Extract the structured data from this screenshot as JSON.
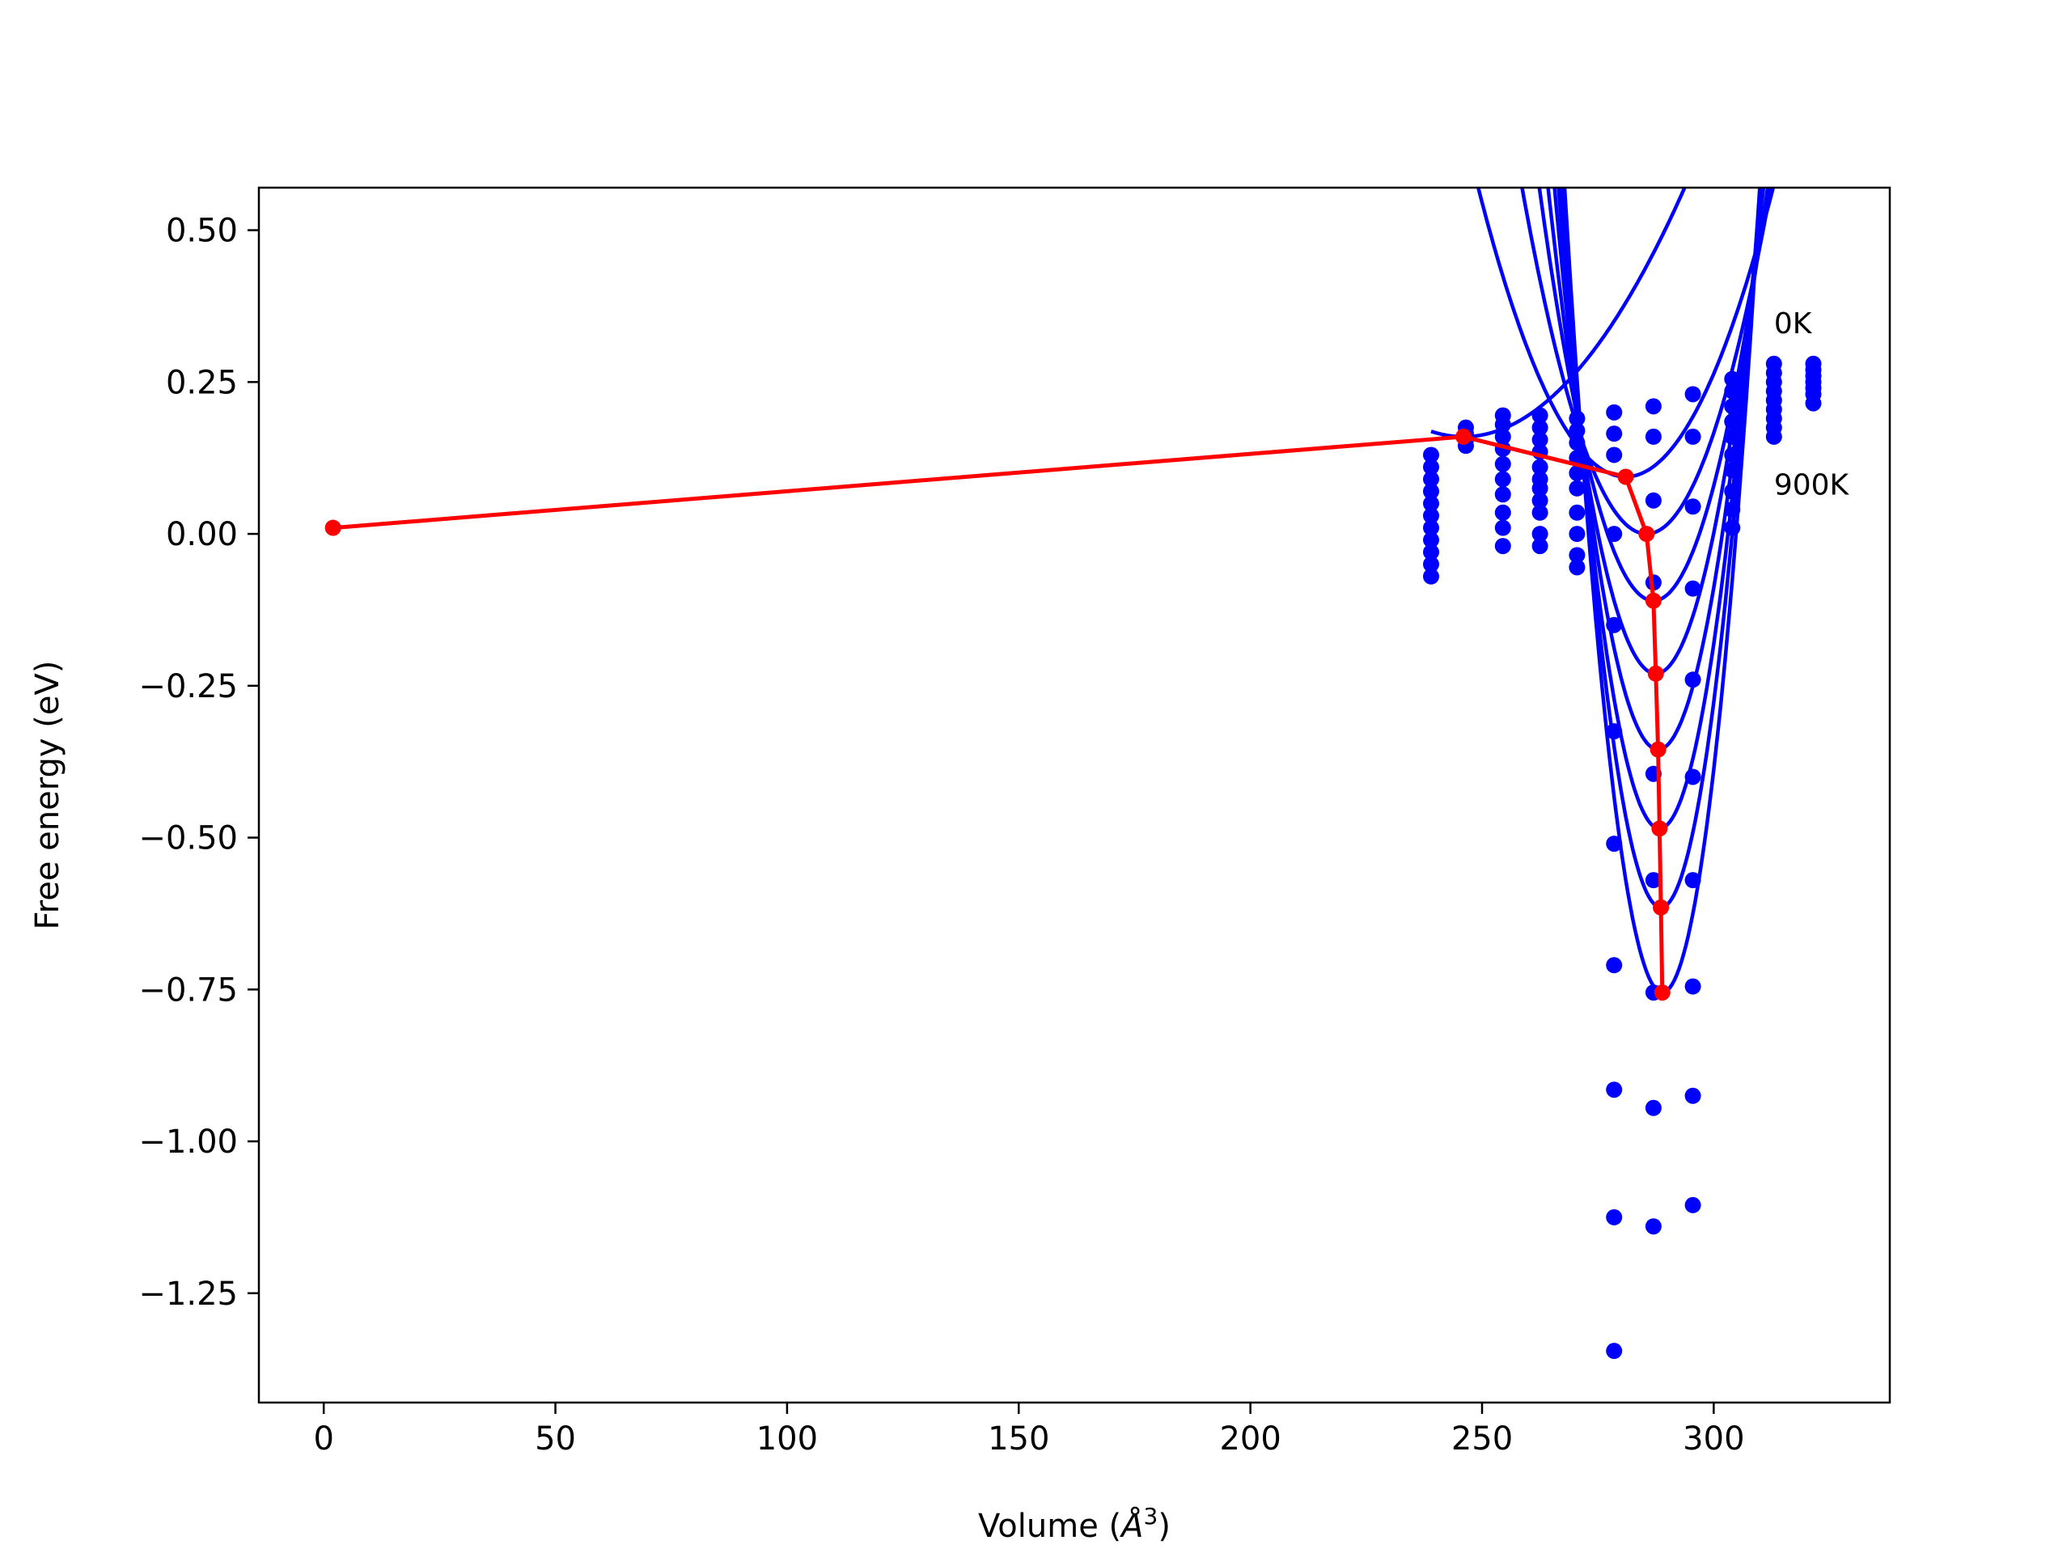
{
  "chart_data": {
    "type": "line",
    "title": "",
    "xlabel": "Volume (",
    "xlabel_symbol": "Å",
    "xlabel_sup": "3",
    "xlabel_close": ")",
    "ylabel": "Free energy (eV)",
    "xlim": [
      -14,
      338
    ],
    "ylim": [
      -1.43,
      0.57
    ],
    "xticks": [
      0,
      50,
      100,
      150,
      200,
      250,
      300
    ],
    "xtick_labels": [
      "0",
      "50",
      "100",
      "150",
      "200",
      "250",
      "300"
    ],
    "yticks": [
      0.5,
      0.25,
      0.0,
      -0.25,
      -0.5,
      -0.75,
      -1.0,
      -1.25
    ],
    "ytick_labels": [
      "0.50",
      "0.25",
      "0.00",
      "−0.25",
      "−0.50",
      "−0.75",
      "−1.00",
      "−1.25"
    ],
    "grid": false,
    "annotations": [
      {
        "text": "0K",
        "x": 313,
        "y": 0.33
      },
      {
        "text": "900K",
        "x": 313,
        "y": 0.065
      }
    ],
    "colors": {
      "fits": "#0000ff",
      "minimum_path": "#ff0000",
      "axes": "#000000"
    },
    "fit_curves": [
      {
        "v0": 246,
        "e0": 0.16,
        "a": 0.00018
      },
      {
        "v0": 281,
        "e0": 0.094,
        "a": 0.00047
      },
      {
        "v0": 285.5,
        "e0": 0.0,
        "a": 0.00079
      },
      {
        "v0": 287,
        "e0": -0.11,
        "a": 0.00112
      },
      {
        "v0": 287.5,
        "e0": -0.23,
        "a": 0.00148
      },
      {
        "v0": 288,
        "e0": -0.355,
        "a": 0.00185
      },
      {
        "v0": 288.3,
        "e0": -0.485,
        "a": 0.00222
      },
      {
        "v0": 288.6,
        "e0": -0.615,
        "a": 0.0026
      },
      {
        "v0": 288.9,
        "e0": -0.755,
        "a": 0.00298
      }
    ],
    "fit_range": [
      239,
      322
    ],
    "scatter_points": [
      {
        "x": 239,
        "y": 0.13
      },
      {
        "x": 239,
        "y": 0.11
      },
      {
        "x": 239,
        "y": 0.09
      },
      {
        "x": 239,
        "y": 0.07
      },
      {
        "x": 239,
        "y": 0.05
      },
      {
        "x": 239,
        "y": 0.03
      },
      {
        "x": 239,
        "y": 0.01
      },
      {
        "x": 239,
        "y": -0.01
      },
      {
        "x": 239,
        "y": -0.03
      },
      {
        "x": 239,
        "y": -0.05
      },
      {
        "x": 239,
        "y": -0.07
      },
      {
        "x": 246.5,
        "y": 0.175
      },
      {
        "x": 246.5,
        "y": 0.165
      },
      {
        "x": 246.5,
        "y": 0.155
      },
      {
        "x": 246.5,
        "y": 0.145
      },
      {
        "x": 254.5,
        "y": 0.195
      },
      {
        "x": 254.5,
        "y": 0.18
      },
      {
        "x": 254.5,
        "y": 0.16
      },
      {
        "x": 254.5,
        "y": 0.14
      },
      {
        "x": 254.5,
        "y": 0.115
      },
      {
        "x": 254.5,
        "y": 0.09
      },
      {
        "x": 254.5,
        "y": 0.065
      },
      {
        "x": 254.5,
        "y": 0.035
      },
      {
        "x": 254.5,
        "y": 0.01
      },
      {
        "x": 254.5,
        "y": -0.02
      },
      {
        "x": 262.5,
        "y": 0.195
      },
      {
        "x": 262.5,
        "y": 0.175
      },
      {
        "x": 262.5,
        "y": 0.155
      },
      {
        "x": 262.5,
        "y": 0.135
      },
      {
        "x": 262.5,
        "y": 0.11
      },
      {
        "x": 262.5,
        "y": 0.09
      },
      {
        "x": 262.5,
        "y": 0.075
      },
      {
        "x": 262.5,
        "y": 0.055
      },
      {
        "x": 262.5,
        "y": 0.035
      },
      {
        "x": 262.5,
        "y": 0.0
      },
      {
        "x": 262.5,
        "y": -0.02
      },
      {
        "x": 270.5,
        "y": 0.19
      },
      {
        "x": 270.5,
        "y": 0.17
      },
      {
        "x": 270.5,
        "y": 0.15
      },
      {
        "x": 270.5,
        "y": 0.125
      },
      {
        "x": 270.5,
        "y": 0.1
      },
      {
        "x": 270.5,
        "y": 0.075
      },
      {
        "x": 270.5,
        "y": 0.035
      },
      {
        "x": 270.5,
        "y": 0.0
      },
      {
        "x": 270.5,
        "y": -0.035
      },
      {
        "x": 270.5,
        "y": -0.055
      },
      {
        "x": 278.5,
        "y": 0.2
      },
      {
        "x": 278.5,
        "y": 0.165
      },
      {
        "x": 278.5,
        "y": 0.13
      },
      {
        "x": 278.5,
        "y": 0.0
      },
      {
        "x": 278.5,
        "y": -0.15
      },
      {
        "x": 278.5,
        "y": -0.325
      },
      {
        "x": 278.5,
        "y": -0.51
      },
      {
        "x": 278.5,
        "y": -0.71
      },
      {
        "x": 278.5,
        "y": -0.915
      },
      {
        "x": 278.5,
        "y": -1.125
      },
      {
        "x": 278.5,
        "y": -1.345
      },
      {
        "x": 287,
        "y": 0.21
      },
      {
        "x": 287,
        "y": 0.16
      },
      {
        "x": 287,
        "y": 0.055
      },
      {
        "x": 287,
        "y": -0.08
      },
      {
        "x": 287,
        "y": -0.395
      },
      {
        "x": 287,
        "y": -0.57
      },
      {
        "x": 287,
        "y": -0.755
      },
      {
        "x": 287,
        "y": -0.945
      },
      {
        "x": 287,
        "y": -1.14
      },
      {
        "x": 295.5,
        "y": 0.23
      },
      {
        "x": 295.5,
        "y": 0.16
      },
      {
        "x": 295.5,
        "y": 0.045
      },
      {
        "x": 295.5,
        "y": -0.09
      },
      {
        "x": 295.5,
        "y": -0.24
      },
      {
        "x": 295.5,
        "y": -0.4
      },
      {
        "x": 295.5,
        "y": -0.57
      },
      {
        "x": 295.5,
        "y": -0.745
      },
      {
        "x": 295.5,
        "y": -0.925
      },
      {
        "x": 295.5,
        "y": -1.105
      },
      {
        "x": 304,
        "y": 0.255
      },
      {
        "x": 304,
        "y": 0.235
      },
      {
        "x": 304,
        "y": 0.21
      },
      {
        "x": 304,
        "y": 0.185
      },
      {
        "x": 304,
        "y": 0.16
      },
      {
        "x": 304,
        "y": 0.13
      },
      {
        "x": 304,
        "y": 0.105
      },
      {
        "x": 304,
        "y": 0.07
      },
      {
        "x": 304,
        "y": 0.04
      },
      {
        "x": 304,
        "y": 0.01
      },
      {
        "x": 313,
        "y": 0.28
      },
      {
        "x": 313,
        "y": 0.265
      },
      {
        "x": 313,
        "y": 0.25
      },
      {
        "x": 313,
        "y": 0.235
      },
      {
        "x": 313,
        "y": 0.22
      },
      {
        "x": 313,
        "y": 0.205
      },
      {
        "x": 313,
        "y": 0.19
      },
      {
        "x": 313,
        "y": 0.175
      },
      {
        "x": 313,
        "y": 0.16
      },
      {
        "x": 321.5,
        "y": 0.28
      },
      {
        "x": 321.5,
        "y": 0.27
      },
      {
        "x": 321.5,
        "y": 0.26
      },
      {
        "x": 321.5,
        "y": 0.25
      },
      {
        "x": 321.5,
        "y": 0.24
      },
      {
        "x": 321.5,
        "y": 0.23
      },
      {
        "x": 321.5,
        "y": 0.215
      }
    ],
    "minimum_path": {
      "x": [
        2,
        246,
        281,
        285.5,
        287,
        287.5,
        288,
        288.3,
        288.6,
        288.9
      ],
      "y": [
        0.01,
        0.16,
        0.094,
        0.0,
        -0.11,
        -0.23,
        -0.355,
        -0.485,
        -0.615,
        -0.755
      ]
    }
  }
}
